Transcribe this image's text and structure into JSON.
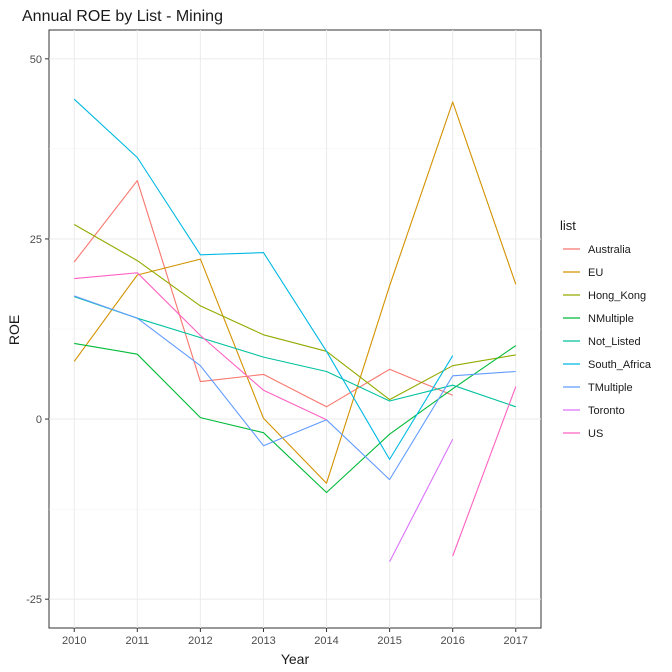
{
  "chart_data": {
    "type": "line",
    "title": "Annual ROE by List - Mining",
    "xlabel": "Year",
    "ylabel": "ROE",
    "x": [
      2010,
      2011,
      2012,
      2013,
      2014,
      2015,
      2016,
      2017
    ],
    "xlim": [
      2009.6,
      2017.4
    ],
    "ylim": [
      -29,
      54
    ],
    "yticks": [
      -25,
      0,
      25,
      50
    ],
    "grid": true,
    "legend_title": "list",
    "legend_position": "right",
    "series": [
      {
        "name": "Australia",
        "color": "#F8766D",
        "values": [
          21.8,
          33.1,
          5.2,
          6.2,
          1.7,
          6.9,
          3.3,
          null
        ]
      },
      {
        "name": "EU",
        "color": "#D39200",
        "values": [
          8.0,
          20.0,
          22.2,
          0.1,
          -8.9,
          18.5,
          44.0,
          18.7
        ]
      },
      {
        "name": "Hong_Kong",
        "color": "#93AA00",
        "values": [
          27.0,
          22.0,
          15.7,
          11.7,
          9.4,
          2.7,
          7.4,
          8.9
        ]
      },
      {
        "name": "NMultiple",
        "color": "#00BA38",
        "values": [
          10.5,
          9.0,
          0.2,
          -1.9,
          -10.2,
          -2.1,
          4.2,
          10.2
        ]
      },
      {
        "name": "Not_Listed",
        "color": "#00C19F",
        "values": [
          17.0,
          14.0,
          11.3,
          8.6,
          6.6,
          2.5,
          4.7,
          1.7
        ]
      },
      {
        "name": "South_Africa",
        "color": "#00B9E3",
        "values": [
          44.4,
          36.3,
          22.8,
          23.1,
          9.4,
          -5.6,
          8.8,
          null
        ]
      },
      {
        "name": "TMultiple",
        "color": "#619CFF",
        "values": [
          17.1,
          14.0,
          7.4,
          -3.7,
          -0.1,
          -8.4,
          6.0,
          6.6
        ]
      },
      {
        "name": "Toronto",
        "color": "#DB72FB",
        "values": [
          null,
          null,
          null,
          null,
          null,
          -19.8,
          -2.8,
          null
        ]
      },
      {
        "name": "US",
        "color": "#FF61C3",
        "values": [
          19.5,
          20.3,
          11.6,
          4.0,
          -0.1,
          null,
          -19.0,
          4.5
        ]
      }
    ]
  }
}
